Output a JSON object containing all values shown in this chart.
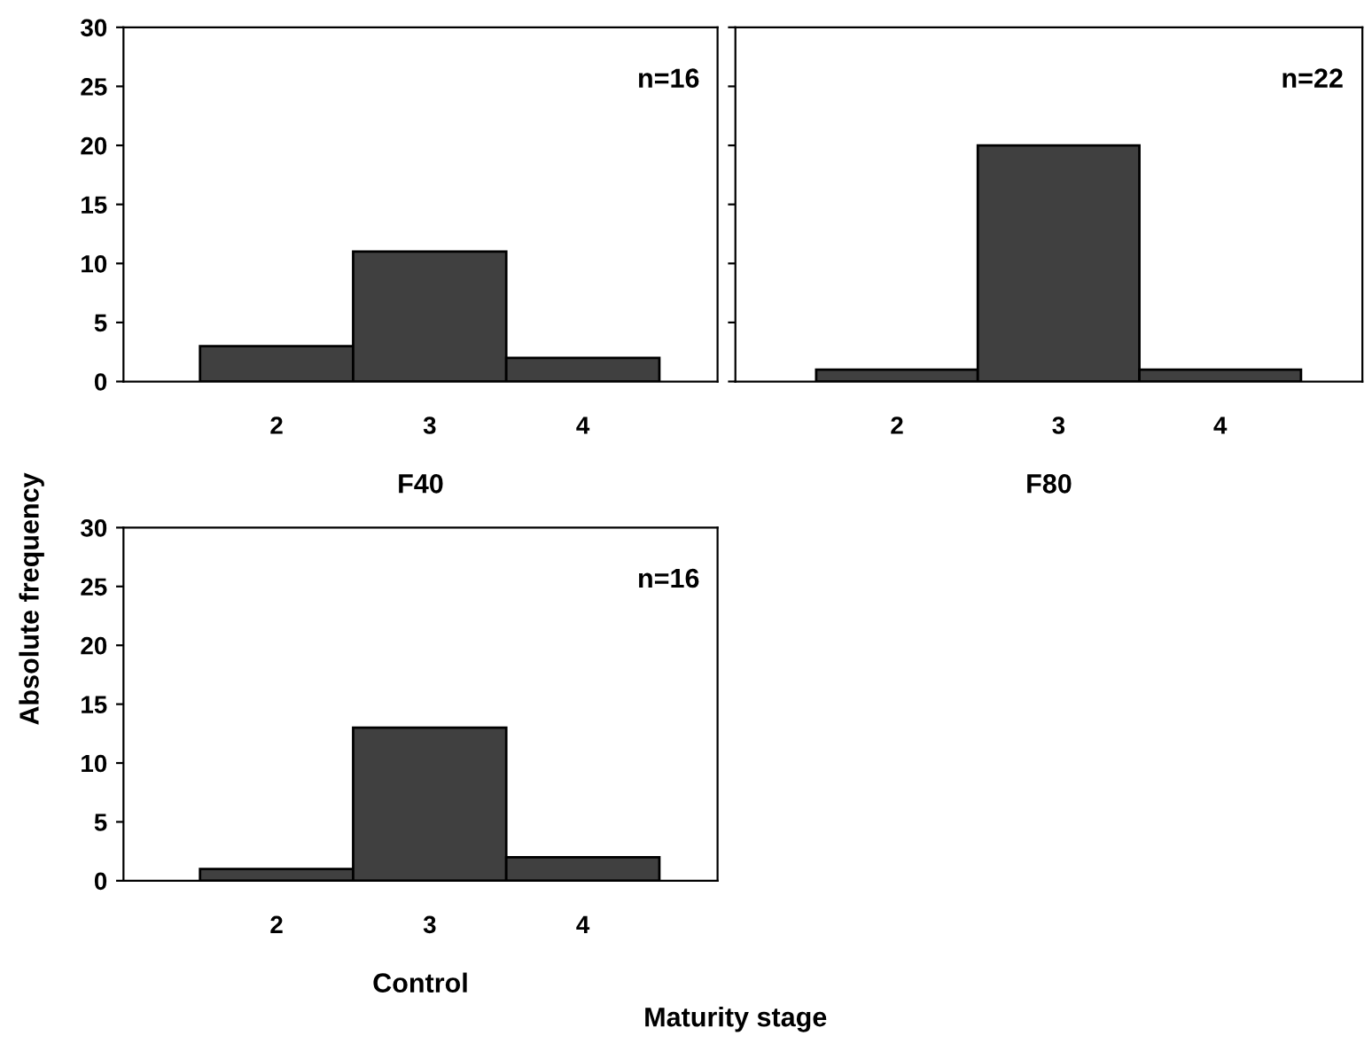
{
  "chart_data": [
    {
      "type": "bar",
      "xlabel": "F40",
      "ylabel": "Absolute frequency",
      "categories": [
        "2",
        "3",
        "4"
      ],
      "values": [
        3,
        11,
        2
      ],
      "color": "#404040",
      "ylim": [
        0,
        30
      ],
      "yticks": [
        0,
        5,
        10,
        15,
        20,
        25,
        30
      ],
      "grid": false,
      "annotations": [
        "n=16"
      ]
    },
    {
      "type": "bar",
      "xlabel": "F80",
      "categories": [
        "2",
        "3",
        "4"
      ],
      "values": [
        1,
        20,
        1
      ],
      "color": "#404040",
      "ylim": [
        0,
        30
      ],
      "yticks": [
        0,
        5,
        10,
        15,
        20,
        25,
        30
      ],
      "grid": false,
      "tick_labels": "x",
      "annotations": [
        "n=22"
      ]
    },
    {
      "type": "bar",
      "xlabel": "Control",
      "categories": [
        "2",
        "3",
        "4"
      ],
      "values": [
        1,
        13,
        2
      ],
      "color": "#404040",
      "ylim": [
        0,
        30
      ],
      "yticks": [
        0,
        5,
        10,
        15,
        20,
        25,
        30
      ],
      "grid": false,
      "annotations": [
        "n=16",
        "Maturity stage"
      ]
    }
  ]
}
